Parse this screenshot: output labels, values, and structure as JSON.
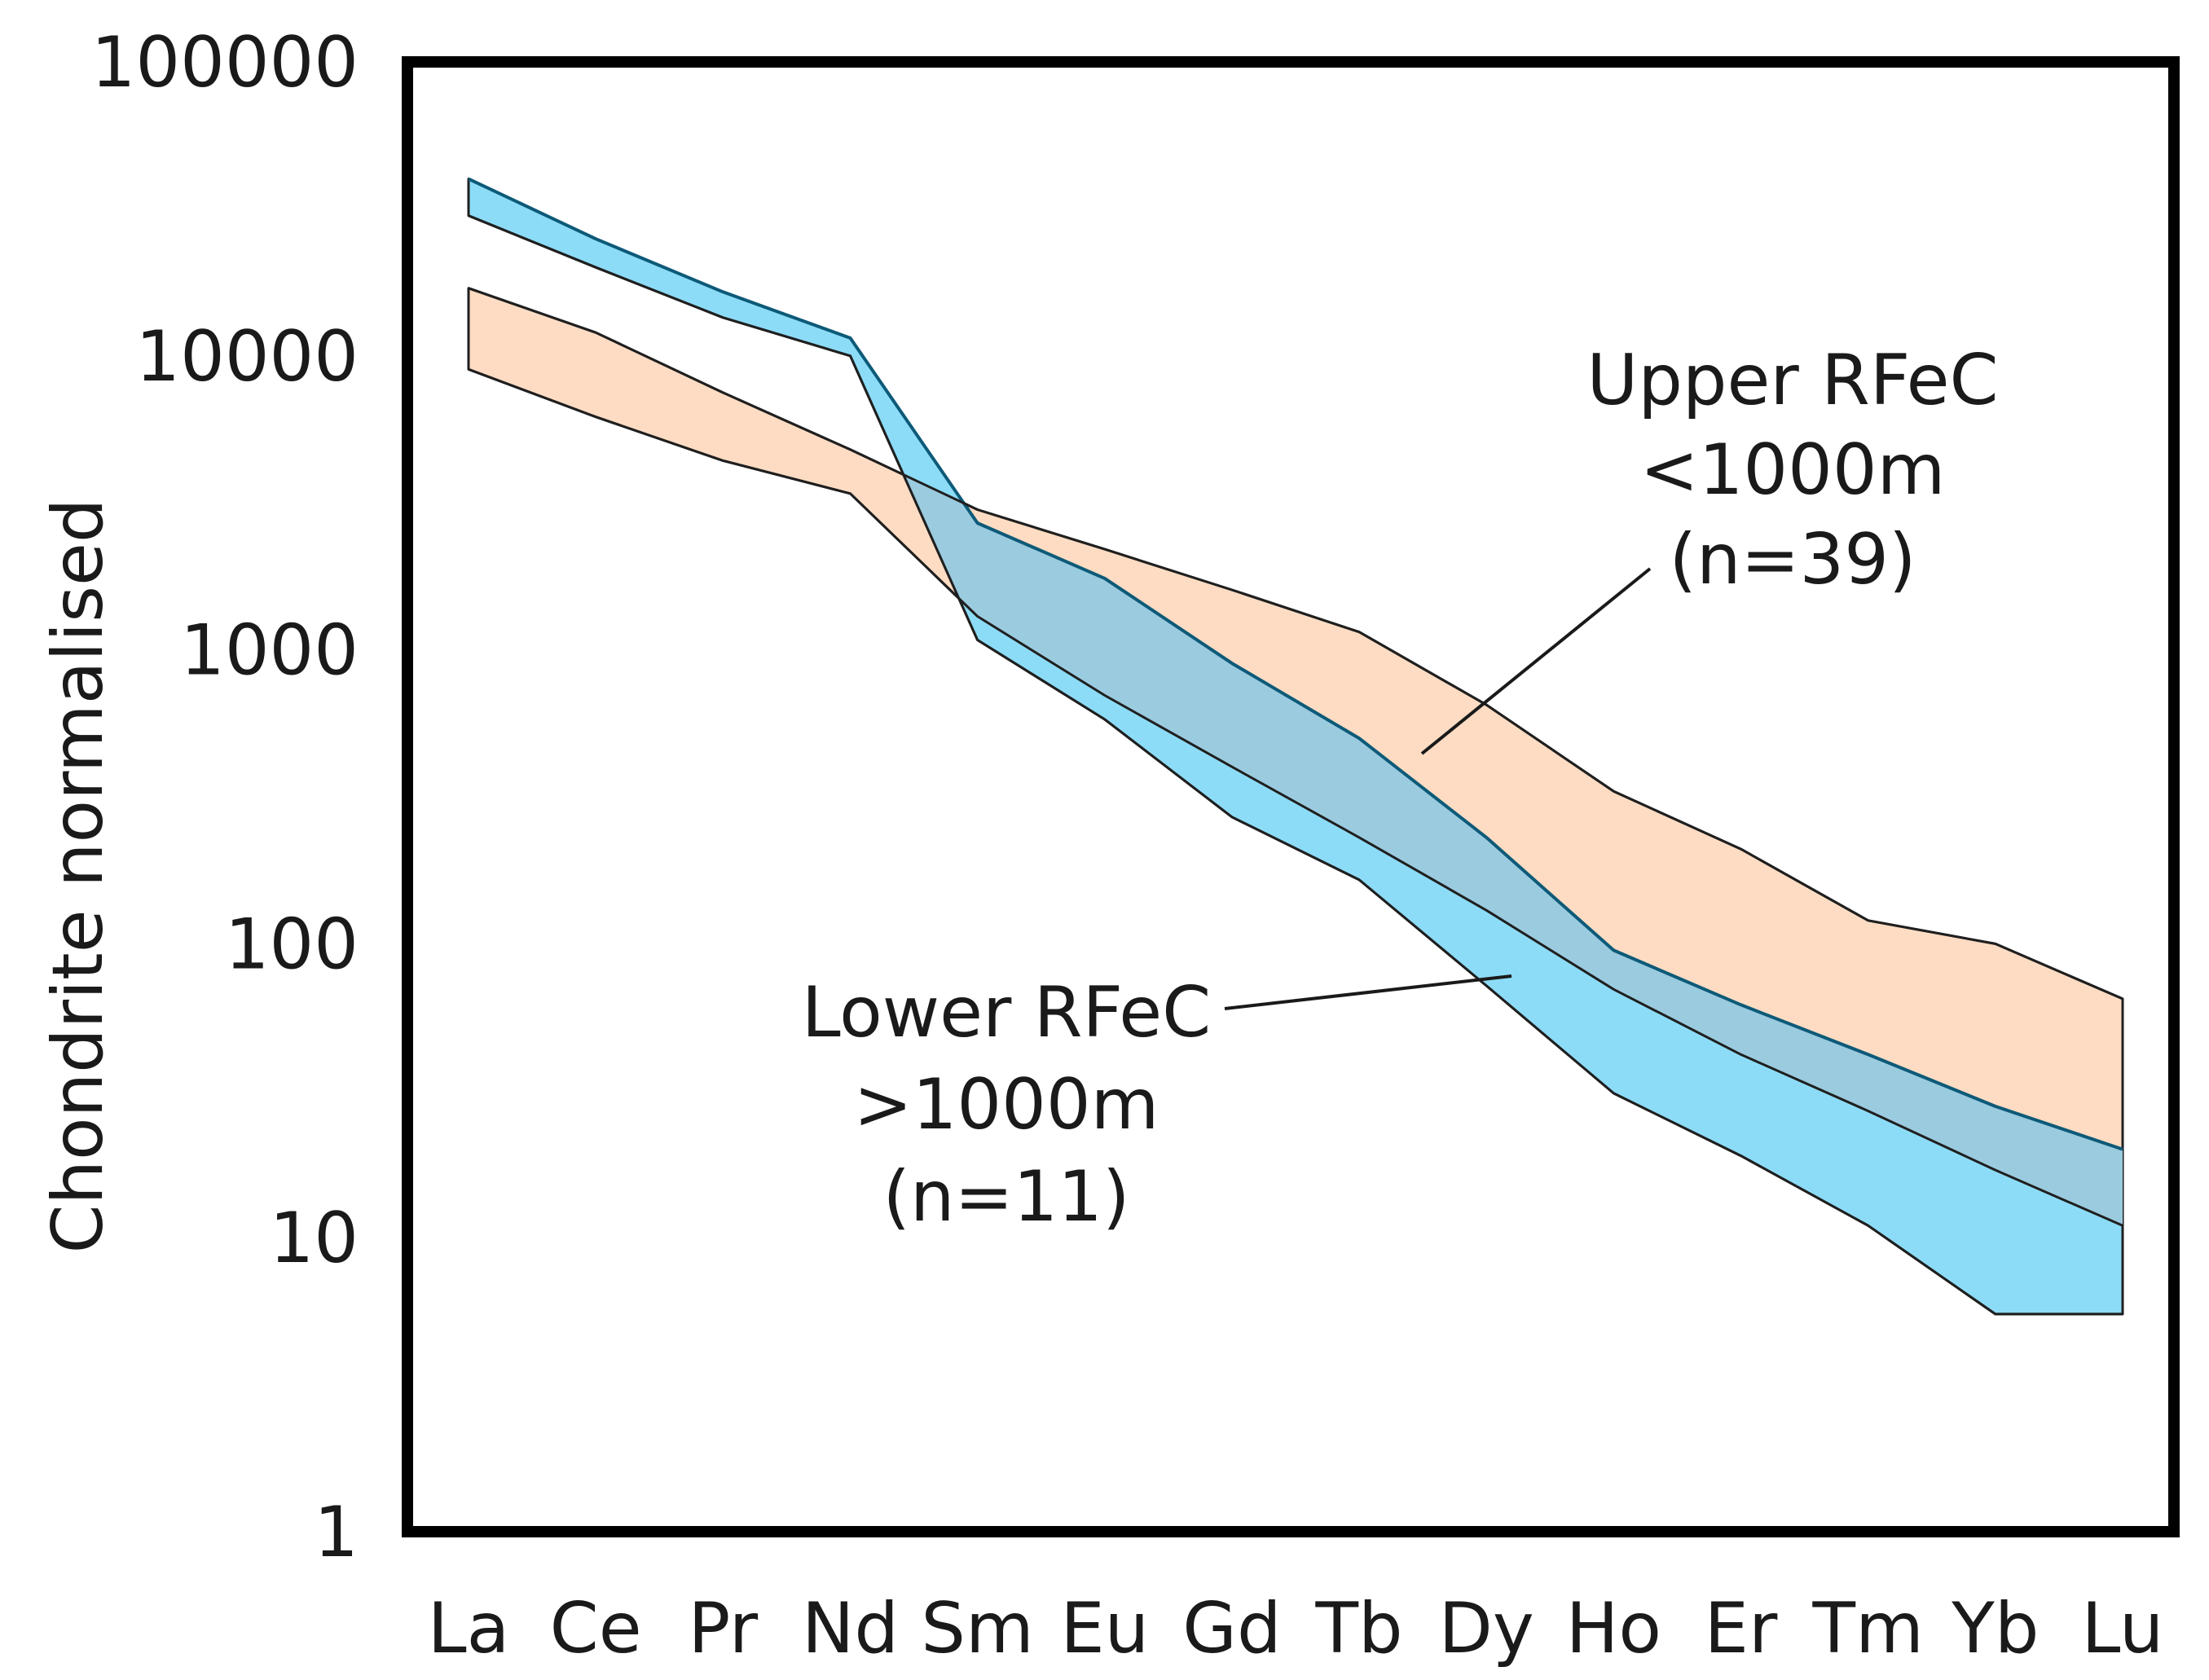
{
  "chart_data": {
    "type": "area",
    "title": "",
    "xlabel": "",
    "ylabel": "Chondrite normalised",
    "yscale": "log",
    "ylim": [
      1,
      100000
    ],
    "yticks": [
      1,
      10,
      100,
      1000,
      10000,
      100000
    ],
    "ytick_labels": [
      "1",
      "10",
      "100",
      "1000",
      "10000",
      "100000"
    ],
    "grid": false,
    "categories": [
      "La",
      "Ce",
      "Pr",
      "Nd",
      "Sm",
      "Eu",
      "Gd",
      "Tb",
      "Dy",
      "Ho",
      "Er",
      "Tm",
      "Yb",
      "Lu"
    ],
    "series": [
      {
        "name": "Upper RFeC <1000m (n=39)",
        "color": "#fddcc3",
        "upper": [
          17000,
          12000,
          7500,
          4800,
          3000,
          2200,
          1600,
          1150,
          650,
          330,
          210,
          120,
          100,
          65
        ],
        "lower": [
          9000,
          6200,
          4400,
          3400,
          1300,
          700,
          400,
          230,
          130,
          70,
          42,
          27,
          17,
          11
        ]
      },
      {
        "name": "Lower RFeC >1000m (n=11)",
        "color": "#8ddcf7",
        "upper": [
          40000,
          25000,
          16500,
          11500,
          2700,
          1750,
          900,
          500,
          230,
          95,
          62,
          42,
          28,
          20
        ],
        "lower": [
          30000,
          20000,
          13500,
          10000,
          1080,
          580,
          270,
          165,
          72,
          31,
          19,
          11,
          5.5,
          5.5
        ]
      }
    ],
    "overlap_color": "#9bcbdf",
    "annotations": [
      {
        "lines": [
          "Upper RFeC",
          "<1000m",
          "(n=39)"
        ]
      },
      {
        "lines": [
          "Lower RFeC",
          ">1000m",
          "(n=11)"
        ]
      }
    ]
  }
}
